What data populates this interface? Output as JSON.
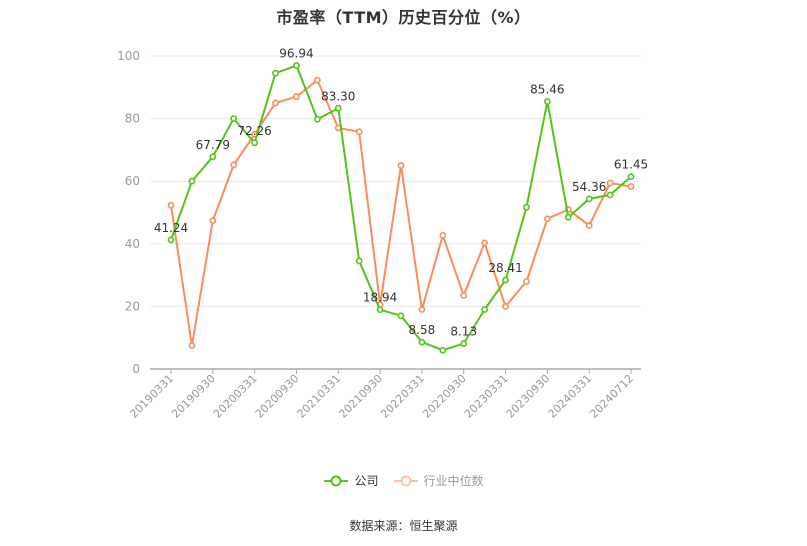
{
  "title": "市盈率（TTM）历史百分位（%）",
  "source": "数据来源：恒生聚源",
  "legend": [
    {
      "label": "公司",
      "color": "#52c41a",
      "text_color": "#333333"
    },
    {
      "label": "行业中位数",
      "color": "#fa8c5a",
      "text_color": "#999999"
    }
  ],
  "chart_data": {
    "type": "line",
    "title": "市盈率（TTM）历史百分位（%）",
    "xlabel": "",
    "ylabel": "",
    "ylim": [
      0,
      100
    ],
    "yticks": [
      0,
      20,
      40,
      60,
      80,
      100
    ],
    "grid": true,
    "legend_position": "bottom",
    "x_tick_labels": [
      "20190331",
      "20190930",
      "20200331",
      "20200930",
      "20210331",
      "20210930",
      "20220331",
      "20220930",
      "20230331",
      "20230930",
      "20240331",
      "20240712"
    ],
    "x": [
      "20190331",
      "20190630",
      "20190930",
      "20191231",
      "20200331",
      "20200630",
      "20200930",
      "20201231",
      "20210331",
      "20210630",
      "20210930",
      "20211231",
      "20220331",
      "20220630",
      "20220930",
      "20221231",
      "20230331",
      "20230630",
      "20230930",
      "20231231",
      "20240331",
      "20240630",
      "20240712"
    ],
    "series": [
      {
        "name": "公司",
        "color": "#52c41a",
        "values": [
          41.24,
          60.0,
          67.79,
          80.0,
          72.26,
          94.5,
          96.94,
          79.8,
          83.3,
          34.5,
          18.94,
          17.0,
          8.58,
          6.0,
          8.13,
          19.0,
          28.41,
          51.7,
          85.46,
          48.5,
          54.36,
          55.6,
          61.45
        ],
        "labeled_points": [
          {
            "index": 0,
            "label": "41.24"
          },
          {
            "index": 2,
            "label": "67.79"
          },
          {
            "index": 4,
            "label": "72.26"
          },
          {
            "index": 6,
            "label": "96.94"
          },
          {
            "index": 8,
            "label": "83.30"
          },
          {
            "index": 10,
            "label": "18.94"
          },
          {
            "index": 12,
            "label": "8.58"
          },
          {
            "index": 14,
            "label": "8.13"
          },
          {
            "index": 16,
            "label": "28.41"
          },
          {
            "index": 18,
            "label": "85.46"
          },
          {
            "index": 20,
            "label": "54.36"
          },
          {
            "index": 22,
            "label": "61.45"
          }
        ]
      },
      {
        "name": "行业中位数",
        "color": "#fa8c5a",
        "values": [
          52.3,
          7.5,
          47.4,
          65.2,
          75.0,
          85.0,
          87.0,
          92.3,
          77.0,
          75.8,
          20.5,
          65.0,
          19.0,
          42.7,
          23.5,
          40.3,
          20.0,
          28.0,
          48.0,
          51.0,
          45.8,
          59.4,
          58.3
        ]
      }
    ]
  }
}
